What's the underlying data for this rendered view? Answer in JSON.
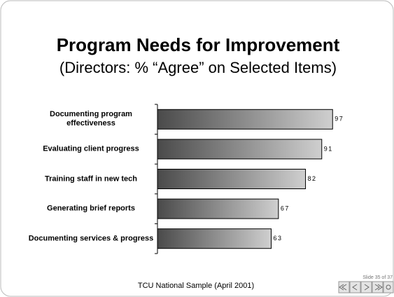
{
  "chart_data": {
    "type": "bar",
    "orientation": "horizontal",
    "title": "Program Needs for Improvement",
    "subtitle": "(Directors: % “Agree” on Selected Items)",
    "categories": [
      "Documenting program effectiveness",
      "Evaluating client progress",
      "Training staff in new tech",
      "Generating brief reports",
      "Documenting services & progress"
    ],
    "values": [
      97,
      91,
      82,
      67,
      63
    ],
    "xlim": [
      0,
      100
    ],
    "gradient": [
      "#4a4a4a",
      "#cfcfcf"
    ]
  },
  "footer": "TCU National Sample (April 2001)",
  "slide_indicator": "Slide 35 of 37"
}
